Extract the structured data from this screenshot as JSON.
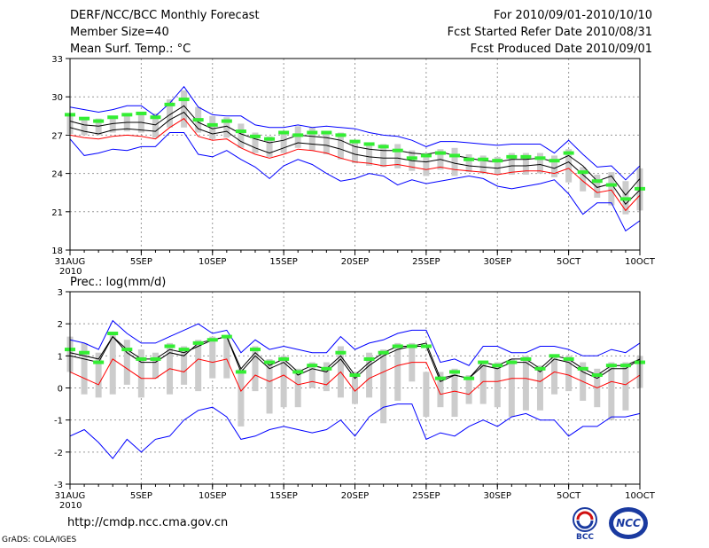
{
  "header": {
    "title": "DERF/NCC/BCC Monthly Forecast",
    "member": "Member Size=40",
    "variable": "Mean Surf. Temp.: °C",
    "period": "For 2010/09/01-2010/10/10",
    "started": "Fcst Started Refer Date 2010/08/31",
    "produced": "Fcst Produced Date 2010/09/01"
  },
  "footer": {
    "url": "http://cmdp.ncc.cma.gov.cn",
    "grads": "GrADS: COLA/IGES",
    "logo1_text": "BCC",
    "logo2_text": "NCC"
  },
  "colors": {
    "blue": "#0000ff",
    "red": "#ff0000",
    "black": "#000000",
    "green": "#33ee33",
    "box": "#cccccc"
  },
  "chart_data": [
    {
      "type": "line",
      "title": "Mean Surf. Temp.: °C",
      "ylim": [
        18,
        33
      ],
      "yticks": [
        18,
        21,
        24,
        27,
        30,
        33
      ],
      "x_ticks": [
        "31AUG",
        "5SEP",
        "10SEP",
        "15SEP",
        "20SEP",
        "25SEP",
        "30SEP",
        "5OCT",
        "10OCT"
      ],
      "x_tick_index": [
        0,
        5,
        10,
        15,
        20,
        25,
        30,
        35,
        40
      ],
      "x_year": "2010",
      "series": [
        {
          "name": "upper",
          "color": "blue",
          "values": [
            29.2,
            29.0,
            28.8,
            29.0,
            29.3,
            29.3,
            28.5,
            29.5,
            30.8,
            29.2,
            28.6,
            28.5,
            28.5,
            27.8,
            27.6,
            27.6,
            27.8,
            27.6,
            27.7,
            27.6,
            27.5,
            27.2,
            27.0,
            26.9,
            26.6,
            26.1,
            26.5,
            26.5,
            26.4,
            26.3,
            26.2,
            26.3,
            26.3,
            26.3,
            25.6,
            26.6,
            25.5,
            24.5,
            24.6,
            23.5,
            24.6
          ]
        },
        {
          "name": "q75",
          "color": "black",
          "values": [
            28.1,
            27.8,
            27.7,
            27.9,
            28.0,
            28.0,
            27.8,
            28.6,
            29.3,
            28.0,
            27.5,
            27.7,
            27.1,
            26.7,
            26.4,
            26.6,
            27.0,
            26.9,
            26.8,
            26.6,
            26.1,
            25.9,
            25.8,
            25.8,
            25.6,
            25.5,
            25.7,
            25.4,
            25.2,
            25.0,
            24.9,
            25.1,
            25.1,
            25.2,
            24.9,
            25.4,
            24.6,
            23.4,
            23.8,
            22.3,
            23.6
          ]
        },
        {
          "name": "mean",
          "color": "black",
          "values": [
            27.6,
            27.3,
            27.1,
            27.4,
            27.5,
            27.4,
            27.3,
            28.2,
            28.8,
            27.5,
            27.1,
            27.3,
            26.5,
            26.0,
            25.6,
            26.0,
            26.4,
            26.3,
            26.2,
            25.9,
            25.5,
            25.3,
            25.2,
            25.2,
            25.0,
            24.9,
            25.1,
            24.8,
            24.6,
            24.5,
            24.4,
            24.6,
            24.6,
            24.7,
            24.4,
            24.9,
            23.9,
            22.9,
            23.2,
            21.6,
            22.7
          ]
        },
        {
          "name": "q25",
          "color": "red",
          "values": [
            27.0,
            26.8,
            26.7,
            26.9,
            27.0,
            26.9,
            26.7,
            27.6,
            28.3,
            26.9,
            26.6,
            26.7,
            26.0,
            25.5,
            25.2,
            25.5,
            25.9,
            25.8,
            25.6,
            25.2,
            24.9,
            24.8,
            24.6,
            24.7,
            24.5,
            24.3,
            24.5,
            24.3,
            24.2,
            24.1,
            23.9,
            24.1,
            24.2,
            24.2,
            24.0,
            24.4,
            23.4,
            22.5,
            22.7,
            21.1,
            22.3
          ]
        },
        {
          "name": "lower",
          "color": "blue",
          "values": [
            26.7,
            25.4,
            25.6,
            25.9,
            25.8,
            26.1,
            26.1,
            27.2,
            27.2,
            25.5,
            25.3,
            25.8,
            25.1,
            24.5,
            23.6,
            24.6,
            25.1,
            24.7,
            24.0,
            23.4,
            23.6,
            24.0,
            23.8,
            23.1,
            23.5,
            23.2,
            23.4,
            23.6,
            23.8,
            23.6,
            23.0,
            22.8,
            23.0,
            23.2,
            23.5,
            22.4,
            20.8,
            21.7,
            21.7,
            19.5,
            20.3
          ]
        }
      ],
      "markers": [
        28.6,
        28.3,
        28.1,
        28.4,
        28.6,
        28.7,
        28.4,
        29.4,
        29.8,
        28.2,
        27.8,
        28.1,
        27.3,
        26.9,
        26.7,
        27.2,
        27.0,
        27.2,
        27.2,
        27.0,
        26.5,
        26.3,
        26.1,
        25.8,
        25.2,
        25.4,
        25.6,
        25.4,
        25.1,
        25.1,
        25.0,
        25.3,
        25.3,
        25.2,
        25.0,
        25.6,
        24.1,
        23.4,
        23.1,
        22.0,
        22.8
      ],
      "boxes": [
        [
          27.1,
          28.6
        ],
        [
          27.0,
          28.4
        ],
        [
          27.0,
          28.3
        ],
        [
          27.2,
          28.4
        ],
        [
          27.3,
          28.7
        ],
        [
          27.2,
          28.8
        ],
        [
          26.8,
          28.7
        ],
        [
          27.6,
          29.8
        ],
        [
          27.6,
          30.5
        ],
        [
          27.2,
          29.2
        ],
        [
          26.7,
          28.5
        ],
        [
          26.8,
          28.4
        ],
        [
          26.0,
          27.9
        ],
        [
          25.6,
          27.2
        ],
        [
          25.3,
          26.9
        ],
        [
          25.6,
          27.3
        ],
        [
          26.0,
          27.7
        ],
        [
          25.8,
          27.6
        ],
        [
          25.5,
          27.3
        ],
        [
          25.1,
          27.2
        ],
        [
          24.8,
          26.6
        ],
        [
          24.6,
          26.4
        ],
        [
          24.5,
          26.3
        ],
        [
          24.4,
          26.3
        ],
        [
          24.2,
          25.8
        ],
        [
          23.8,
          25.6
        ],
        [
          24.3,
          25.9
        ],
        [
          23.8,
          26.0
        ],
        [
          24.1,
          25.5
        ],
        [
          24.0,
          25.4
        ],
        [
          23.9,
          25.3
        ],
        [
          23.9,
          25.6
        ],
        [
          23.9,
          25.6
        ],
        [
          24.0,
          25.6
        ],
        [
          23.7,
          25.4
        ],
        [
          23.3,
          25.9
        ],
        [
          22.6,
          24.5
        ],
        [
          22.1,
          23.9
        ],
        [
          21.5,
          24.1
        ],
        [
          20.8,
          23.4
        ],
        [
          21.1,
          24.4
        ]
      ]
    },
    {
      "type": "line",
      "title": "Prec.: log(mm/d)",
      "ylim": [
        -3,
        3
      ],
      "yticks": [
        -3,
        -2,
        -1,
        0,
        1,
        2,
        3
      ],
      "x_ticks": [
        "31AUG",
        "5SEP",
        "10SEP",
        "15SEP",
        "20SEP",
        "25SEP",
        "30SEP",
        "5OCT",
        "10OCT"
      ],
      "x_tick_index": [
        0,
        5,
        10,
        15,
        20,
        25,
        30,
        35,
        40
      ],
      "x_year": "2010",
      "series": [
        {
          "name": "upper",
          "color": "blue",
          "values": [
            1.5,
            1.4,
            1.2,
            2.1,
            1.7,
            1.4,
            1.4,
            1.6,
            1.8,
            2.0,
            1.7,
            1.8,
            1.1,
            1.5,
            1.2,
            1.3,
            1.2,
            1.1,
            1.1,
            1.6,
            1.2,
            1.4,
            1.5,
            1.7,
            1.8,
            1.8,
            0.8,
            0.9,
            0.7,
            1.3,
            1.3,
            1.1,
            1.1,
            1.3,
            1.3,
            1.2,
            1.0,
            1.0,
            1.2,
            1.1,
            1.4
          ]
        },
        {
          "name": "q75",
          "color": "black",
          "values": [
            1.1,
            1.0,
            0.9,
            1.6,
            1.2,
            0.9,
            0.9,
            1.2,
            1.1,
            1.3,
            1.5,
            1.6,
            0.6,
            1.1,
            0.7,
            0.9,
            0.5,
            0.7,
            0.6,
            1.0,
            0.4,
            0.8,
            1.1,
            1.3,
            1.3,
            1.4,
            0.3,
            0.4,
            0.3,
            0.8,
            0.7,
            0.9,
            0.9,
            0.6,
            1.0,
            0.9,
            0.6,
            0.4,
            0.7,
            0.7,
            0.9
          ]
        },
        {
          "name": "mean",
          "color": "black",
          "values": [
            1.0,
            0.9,
            0.8,
            1.6,
            1.1,
            0.8,
            0.8,
            1.1,
            1.0,
            1.4,
            1.5,
            1.6,
            0.5,
            1.0,
            0.6,
            0.8,
            0.4,
            0.6,
            0.5,
            0.9,
            0.3,
            0.7,
            1.0,
            1.2,
            1.3,
            1.3,
            0.2,
            0.4,
            0.3,
            0.7,
            0.6,
            0.8,
            0.8,
            0.5,
            0.9,
            0.8,
            0.5,
            0.3,
            0.6,
            0.6,
            0.9
          ]
        },
        {
          "name": "q25",
          "color": "red",
          "values": [
            0.5,
            0.3,
            0.1,
            0.9,
            0.6,
            0.3,
            0.3,
            0.6,
            0.5,
            0.9,
            0.8,
            0.9,
            -0.1,
            0.4,
            0.2,
            0.4,
            0.1,
            0.2,
            0.1,
            0.5,
            -0.1,
            0.3,
            0.5,
            0.7,
            0.8,
            0.8,
            -0.2,
            -0.1,
            -0.2,
            0.2,
            0.2,
            0.3,
            0.3,
            0.2,
            0.5,
            0.4,
            0.2,
            0.0,
            0.2,
            0.1,
            0.4
          ]
        },
        {
          "name": "lower",
          "color": "blue",
          "values": [
            -1.5,
            -1.3,
            -1.7,
            -2.2,
            -1.6,
            -2.0,
            -1.6,
            -1.5,
            -1.0,
            -0.7,
            -0.6,
            -0.9,
            -1.6,
            -1.5,
            -1.3,
            -1.2,
            -1.3,
            -1.4,
            -1.3,
            -1.0,
            -1.5,
            -0.9,
            -0.6,
            -0.5,
            -0.5,
            -1.6,
            -1.4,
            -1.5,
            -1.2,
            -1.0,
            -1.2,
            -0.9,
            -0.8,
            -1.0,
            -1.0,
            -1.5,
            -1.2,
            -1.2,
            -0.9,
            -0.9,
            -0.8
          ]
        }
      ],
      "markers": [
        1.2,
        1.1,
        0.8,
        1.7,
        1.2,
        0.9,
        0.9,
        1.3,
        1.2,
        1.4,
        1.5,
        1.6,
        0.5,
        1.2,
        0.8,
        0.9,
        0.5,
        0.7,
        0.6,
        1.1,
        0.4,
        0.9,
        1.1,
        1.3,
        1.3,
        1.3,
        0.3,
        0.5,
        0.3,
        0.8,
        0.7,
        0.8,
        0.9,
        0.6,
        1.0,
        0.9,
        0.6,
        0.4,
        0.7,
        0.7,
        0.8
      ],
      "boxes": [
        [
          0.5,
          1.6
        ],
        [
          -0.2,
          1.4
        ],
        [
          -0.3,
          1.1
        ],
        [
          -0.2,
          1.7
        ],
        [
          0.1,
          1.5
        ],
        [
          -0.3,
          1.2
        ],
        [
          0.3,
          1.1
        ],
        [
          -0.2,
          1.4
        ],
        [
          0.1,
          1.3
        ],
        [
          -0.1,
          1.5
        ],
        [
          0.3,
          1.6
        ],
        [
          0.3,
          1.6
        ],
        [
          -1.2,
          0.6
        ],
        [
          -0.1,
          1.3
        ],
        [
          -0.8,
          0.9
        ],
        [
          -0.6,
          1.0
        ],
        [
          -0.6,
          0.6
        ],
        [
          0.0,
          0.8
        ],
        [
          -0.1,
          0.8
        ],
        [
          -0.3,
          1.3
        ],
        [
          -0.5,
          0.5
        ],
        [
          -0.3,
          1.1
        ],
        [
          -1.1,
          1.2
        ],
        [
          -0.4,
          1.4
        ],
        [
          0.2,
          1.4
        ],
        [
          -0.9,
          0.5
        ],
        [
          -0.6,
          0.5
        ],
        [
          -0.9,
          0.6
        ],
        [
          -0.5,
          0.4
        ],
        [
          -0.5,
          0.8
        ],
        [
          -0.6,
          0.8
        ],
        [
          -0.9,
          0.9
        ],
        [
          -0.7,
          1.0
        ],
        [
          -0.7,
          0.7
        ],
        [
          -0.2,
          1.0
        ],
        [
          -0.1,
          1.0
        ],
        [
          -0.4,
          0.8
        ],
        [
          -0.6,
          0.6
        ],
        [
          -1.0,
          0.8
        ],
        [
          -0.7,
          0.8
        ],
        [
          0.0,
          1.0
        ]
      ]
    }
  ]
}
